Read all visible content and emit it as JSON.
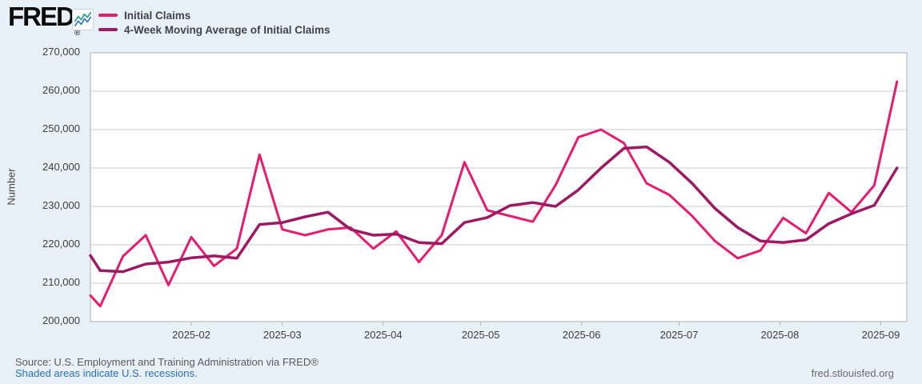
{
  "logo": {
    "text": "FRED",
    "registered": "®"
  },
  "logo_icon": {
    "colors": {
      "green": "#2f9e8f",
      "blue": "#3b78c3"
    }
  },
  "footer": {
    "source": "Source: U.S. Employment and Training Administration via FRED®",
    "note": "Shaded areas indicate U.S. recessions.",
    "site": "fred.stlouisfed.org"
  },
  "colors": {
    "page_background": "#e9f1f8",
    "plot_background": "#ffffff",
    "gridline": "#cccccc",
    "plot_border": "#b0b0b0",
    "tick_text": "#3c3c3c",
    "series1": "#e61c6e",
    "series2": "#9e1963"
  },
  "chart_data": {
    "type": "line",
    "title": "",
    "ylabel": "Number",
    "xlabel": "",
    "grid": true,
    "legend_position": "top-left",
    "ylim": [
      200000,
      270000
    ],
    "ytick_step": 10000,
    "yticks": [
      {
        "value": 200000,
        "label": "200,000"
      },
      {
        "value": 210000,
        "label": "210,000"
      },
      {
        "value": 220000,
        "label": "220,000"
      },
      {
        "value": 230000,
        "label": "230,000"
      },
      {
        "value": 240000,
        "label": "240,000"
      },
      {
        "value": 250000,
        "label": "250,000"
      },
      {
        "value": 260000,
        "label": "260,000"
      },
      {
        "value": 270000,
        "label": "270,000"
      }
    ],
    "x_start_date": "2025-01-01",
    "x_domain_days": [
      0,
      251
    ],
    "xticks": [
      {
        "label": "2025-02",
        "day": 31
      },
      {
        "label": "2025-03",
        "day": 59
      },
      {
        "label": "2025-04",
        "day": 90
      },
      {
        "label": "2025-05",
        "day": 120
      },
      {
        "label": "2025-06",
        "day": 151
      },
      {
        "label": "2025-07",
        "day": 181
      },
      {
        "label": "2025-08",
        "day": 212
      },
      {
        "label": "2025-09",
        "day": 243
      }
    ],
    "x_dates": [
      "2025-01-04",
      "2025-01-11",
      "2025-01-18",
      "2025-01-25",
      "2025-02-01",
      "2025-02-08",
      "2025-02-15",
      "2025-02-22",
      "2025-03-01",
      "2025-03-08",
      "2025-03-15",
      "2025-03-22",
      "2025-03-29",
      "2025-04-05",
      "2025-04-12",
      "2025-04-19",
      "2025-04-26",
      "2025-05-03",
      "2025-05-10",
      "2025-05-17",
      "2025-05-24",
      "2025-05-31",
      "2025-06-07",
      "2025-06-14",
      "2025-06-21",
      "2025-06-28",
      "2025-07-05",
      "2025-07-12",
      "2025-07-19",
      "2025-07-26",
      "2025-08-02",
      "2025-08-09",
      "2025-08-16",
      "2025-08-23",
      "2025-08-30",
      "2025-09-06"
    ],
    "x_days": [
      3,
      10,
      17,
      24,
      31,
      38,
      45,
      52,
      59,
      66,
      73,
      80,
      87,
      94,
      101,
      108,
      115,
      122,
      129,
      136,
      143,
      150,
      157,
      164,
      171,
      178,
      185,
      192,
      199,
      206,
      213,
      220,
      227,
      234,
      241,
      248
    ],
    "left_edge_values": [
      206800,
      217200
    ],
    "series": [
      {
        "name": "Initial Claims",
        "color": "#e61c6e",
        "width": 3,
        "values": [
          204000,
          217000,
          222500,
          209500,
          222000,
          214500,
          219000,
          243500,
          224000,
          222500,
          224000,
          224500,
          219000,
          223500,
          215500,
          222500,
          241500,
          229000,
          227500,
          226000,
          235500,
          248000,
          250000,
          246500,
          236000,
          233000,
          227500,
          221000,
          216500,
          218500,
          227000,
          223000,
          233500,
          228500,
          235500,
          262500
        ]
      },
      {
        "name": "4-Week Moving Average of Initial Claims",
        "color": "#9e1963",
        "width": 3.5,
        "values": [
          213300,
          213000,
          215000,
          215500,
          216600,
          217100,
          216500,
          225300,
          225800,
          227300,
          228500,
          224000,
          222500,
          222800,
          220600,
          220300,
          225800,
          227100,
          230200,
          231000,
          230000,
          234300,
          240000,
          245100,
          245500,
          241500,
          236000,
          229500,
          224500,
          221000,
          220600,
          221300,
          225500,
          228100,
          230300,
          240000
        ]
      }
    ]
  }
}
